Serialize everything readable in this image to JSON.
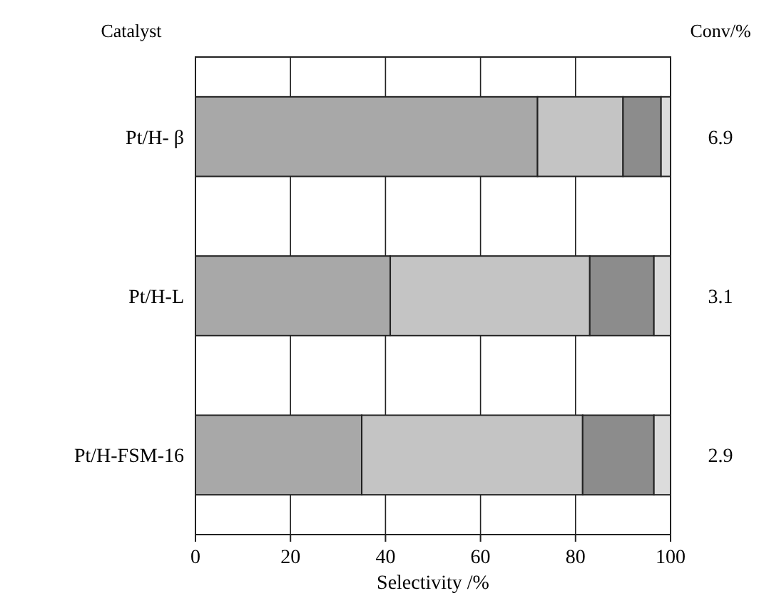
{
  "chart_data": {
    "type": "bar",
    "orientation": "horizontal",
    "stacked": true,
    "ylabel": "Catalyst",
    "xlabel": "Selectivity /%",
    "y2label": "Conv/%",
    "categories": [
      "Pt/H- β",
      "Pt/H-L",
      "Pt/H-FSM-16"
    ],
    "series": [
      {
        "color": "#a8a8a8",
        "values": [
          72,
          41,
          35
        ]
      },
      {
        "color": "#c4c4c4",
        "values": [
          18,
          42,
          46.5
        ]
      },
      {
        "color": "#8c8c8c",
        "values": [
          8,
          13.5,
          15
        ]
      },
      {
        "color": "#dcdcdc",
        "values": [
          2,
          3.5,
          3.5
        ]
      }
    ],
    "xlim": [
      0,
      100
    ],
    "xticks": [
      0,
      20,
      40,
      60,
      80,
      100
    ],
    "grid": "x",
    "annotations": [
      "6.9",
      "3.1",
      "2.9"
    ]
  }
}
